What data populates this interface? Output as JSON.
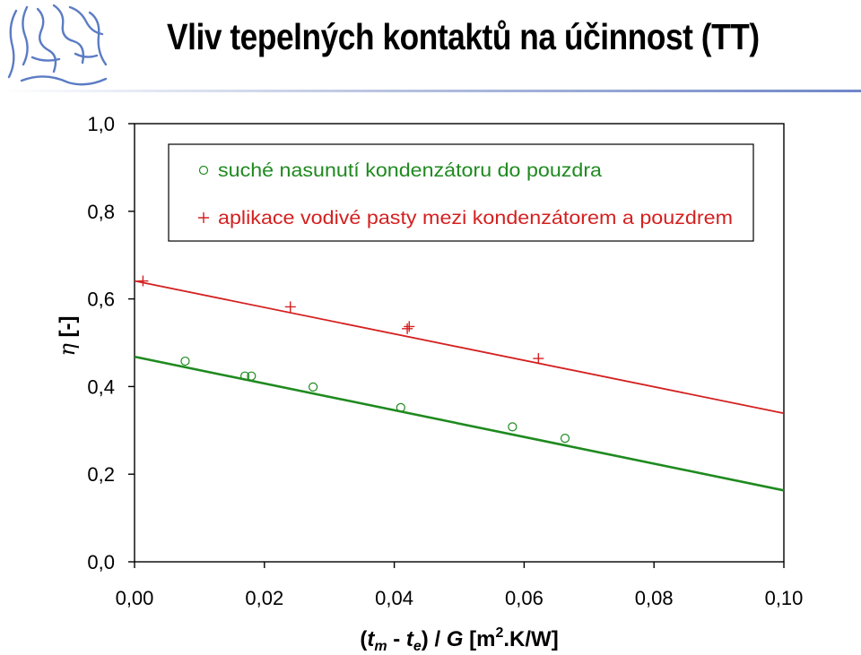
{
  "page": {
    "title": "Vliv tepelných kontaktů na účinnost (TT)"
  },
  "colors": {
    "series1": "#1f8a1f",
    "series2": "#d42020",
    "rule": "#6f86c7"
  },
  "chart_data": {
    "type": "scatter",
    "xlim": [
      0.0,
      0.1
    ],
    "ylim": [
      0.0,
      1.0
    ],
    "x_ticks": [
      0.0,
      0.02,
      0.04,
      0.06,
      0.08,
      0.1
    ],
    "y_ticks": [
      0.0,
      0.2,
      0.4,
      0.6,
      0.8,
      1.0
    ],
    "x_tick_labels": [
      "0,00",
      "0,02",
      "0,04",
      "0,06",
      "0,08",
      "0,10"
    ],
    "y_tick_labels": [
      "0,0",
      "0,2",
      "0,4",
      "0,6",
      "0,8",
      "1,0"
    ],
    "xlabel": {
      "open": "(",
      "t1": "t",
      "sub1": "m",
      "minus": " - ",
      "t2": "t",
      "sub2": "e",
      "close": ")",
      "slash": " / ",
      "g": "G",
      "unit_pre": "  [m",
      "sup": "2",
      "unit_post": ".K/W]"
    },
    "ylabel": {
      "symbol": "η",
      "unit": " [-]"
    },
    "grid": false,
    "legend_position": "top",
    "series": [
      {
        "name": "suché nasunutí kondenzátoru do pouzdra",
        "marker": "circle",
        "points": [
          [
            0.0078,
            0.458
          ],
          [
            0.017,
            0.424
          ],
          [
            0.018,
            0.424
          ],
          [
            0.0275,
            0.399
          ],
          [
            0.041,
            0.352
          ],
          [
            0.0582,
            0.308
          ],
          [
            0.0663,
            0.282
          ]
        ],
        "fit": [
          [
            0.0,
            0.468
          ],
          [
            0.1,
            0.163
          ]
        ]
      },
      {
        "name": "aplikace vodivé pasty mezi kondenzátorem a pouzdrem",
        "marker": "plus",
        "points": [
          [
            0.0013,
            0.641
          ],
          [
            0.024,
            0.582
          ],
          [
            0.042,
            0.532
          ],
          [
            0.0423,
            0.537
          ],
          [
            0.0622,
            0.464
          ]
        ],
        "fit": [
          [
            0.0,
            0.641
          ],
          [
            0.1,
            0.339
          ]
        ]
      }
    ]
  }
}
